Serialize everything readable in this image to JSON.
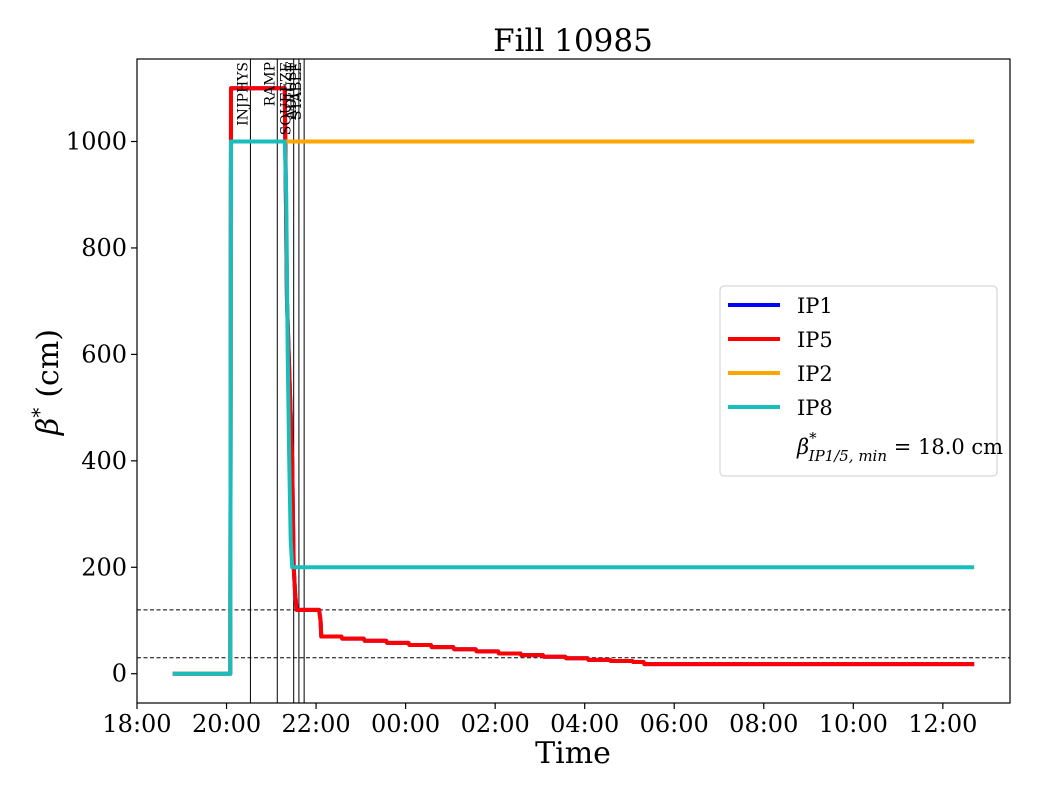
{
  "chart_data": {
    "type": "line",
    "title": "Fill 10985",
    "xlabel": "Time",
    "ylabel_symbol": "β",
    "ylabel_sup": "*",
    "ylabel_unit": "(cm)",
    "x_axis": {
      "range": [
        "18:00",
        "13:30"
      ],
      "ticks": [
        "18:00",
        "20:00",
        "22:00",
        "00:00",
        "02:00",
        "04:00",
        "06:00",
        "08:00",
        "10:00",
        "12:00"
      ]
    },
    "y_axis": {
      "range": [
        -55,
        1155
      ],
      "ticks": [
        0,
        200,
        400,
        600,
        800,
        1000
      ]
    },
    "grid": false,
    "legend_position": "center-right",
    "beam_modes": [
      {
        "label": "INJPHYS",
        "time": "20:32"
      },
      {
        "label": "RAMP",
        "time": "21:08"
      },
      {
        "label": "SQUEEZE",
        "time": "21:30"
      },
      {
        "label": "ADJUST",
        "time": "21:37"
      },
      {
        "label": "STABLE",
        "time": "21:44"
      }
    ],
    "reference_lines": [
      {
        "value": 120,
        "style": "dashed"
      },
      {
        "value": 30,
        "style": "dashed"
      }
    ],
    "series": [
      {
        "name": "IP1",
        "color": "#0000ff",
        "x": [
          "18:48",
          "20:05",
          "20:06",
          "21:18",
          "21:21",
          "21:28",
          "21:30",
          "21:32",
          "21:34",
          "22:04",
          "22:06",
          "22:07",
          "22:34",
          "22:35",
          "23:04",
          "23:05",
          "23:34",
          "23:35",
          "00:04",
          "00:05",
          "00:34",
          "00:35",
          "01:04",
          "01:05",
          "01:34",
          "01:35",
          "02:04",
          "02:05",
          "02:34",
          "02:35",
          "03:04",
          "03:05",
          "03:34",
          "03:35",
          "04:04",
          "04:05",
          "04:34",
          "04:35",
          "05:04",
          "05:05",
          "05:19",
          "05:20",
          "12:42"
        ],
        "y": [
          0,
          0,
          1100,
          1100,
          700,
          400,
          200,
          150,
          120,
          120,
          100,
          70,
          70,
          66,
          66,
          62,
          62,
          58,
          58,
          54,
          54,
          50,
          50,
          46,
          46,
          42,
          42,
          38,
          38,
          35,
          35,
          32,
          32,
          29,
          29,
          26,
          26,
          24,
          24,
          22,
          22,
          18,
          18
        ]
      },
      {
        "name": "IP5",
        "color": "#ff0000",
        "x": [
          "18:48",
          "20:05",
          "20:06",
          "21:18",
          "21:21",
          "21:28",
          "21:30",
          "21:32",
          "21:34",
          "22:04",
          "22:06",
          "22:07",
          "22:34",
          "22:35",
          "23:04",
          "23:05",
          "23:34",
          "23:35",
          "00:04",
          "00:05",
          "00:34",
          "00:35",
          "01:04",
          "01:05",
          "01:34",
          "01:35",
          "02:04",
          "02:05",
          "02:34",
          "02:35",
          "03:04",
          "03:05",
          "03:34",
          "03:35",
          "04:04",
          "04:05",
          "04:34",
          "04:35",
          "05:04",
          "05:05",
          "05:19",
          "05:20",
          "12:42"
        ],
        "y": [
          0,
          0,
          1100,
          1100,
          700,
          400,
          200,
          150,
          120,
          120,
          100,
          70,
          70,
          66,
          66,
          62,
          62,
          58,
          58,
          54,
          54,
          50,
          50,
          46,
          46,
          42,
          42,
          38,
          38,
          35,
          35,
          32,
          32,
          29,
          29,
          26,
          26,
          24,
          24,
          22,
          22,
          18,
          18
        ]
      },
      {
        "name": "IP2",
        "color": "#ffa500",
        "x": [
          "18:48",
          "20:05",
          "20:06",
          "21:18",
          "21:20",
          "12:42"
        ],
        "y": [
          0,
          0,
          1000,
          1000,
          1000,
          1000
        ]
      },
      {
        "name": "IP8",
        "color": "#17bebb",
        "x": [
          "18:48",
          "20:05",
          "20:06",
          "21:18",
          "21:20",
          "21:22",
          "21:24",
          "21:26",
          "21:28",
          "12:42"
        ],
        "y": [
          0,
          0,
          1000,
          1000,
          900,
          600,
          400,
          250,
          200,
          200
        ]
      }
    ],
    "legend_extra": {
      "symbol": "β",
      "sup": "*",
      "sub": "IP1/5, min",
      "text": " = 18.0 cm"
    }
  }
}
